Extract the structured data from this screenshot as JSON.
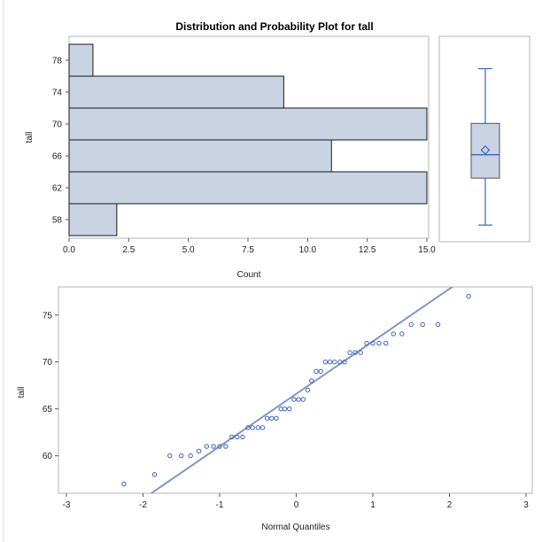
{
  "title": "Distribution and Probability Plot for tall",
  "chart_data": [
    {
      "type": "bar",
      "orientation": "horizontal",
      "title": "Distribution and Probability Plot for tall",
      "xlabel": "Count",
      "ylabel": "tall",
      "categories": [
        "78",
        "74",
        "70",
        "66",
        "62",
        "58"
      ],
      "values": [
        1,
        9,
        15,
        11,
        15,
        2
      ],
      "xlim": [
        0,
        15
      ],
      "x_ticks": [
        "0.0",
        "2.5",
        "5.0",
        "7.5",
        "10.0",
        "12.5",
        "15.0"
      ],
      "y_ticks": [
        "78",
        "74",
        "70",
        "66",
        "62",
        "58"
      ],
      "colors": {
        "fill": "#c9d3e3",
        "stroke": "#1a1a1a"
      }
    },
    {
      "type": "box",
      "whisker_low": 57,
      "q1": 63,
      "median": 66,
      "mean": 66.6,
      "q3": 70,
      "whisker_high": 77,
      "ylim": [
        56,
        80
      ],
      "colors": {
        "box": "#c9d3e3",
        "line": "#3d63c2"
      }
    },
    {
      "type": "scatter",
      "xlabel": "Normal Quantiles",
      "ylabel": "tall",
      "xlim": [
        -3,
        3
      ],
      "ylim": [
        56,
        78
      ],
      "x_ticks": [
        "-3",
        "-2",
        "-1",
        "0",
        "1",
        "2",
        "3"
      ],
      "y_ticks": [
        "75",
        "70",
        "65",
        "60"
      ],
      "points": [
        [
          -2.25,
          57
        ],
        [
          -1.85,
          58
        ],
        [
          -1.65,
          60
        ],
        [
          -1.5,
          60
        ],
        [
          -1.38,
          60
        ],
        [
          -1.27,
          60.5
        ],
        [
          -1.17,
          61
        ],
        [
          -1.08,
          61
        ],
        [
          -1.0,
          61
        ],
        [
          -0.92,
          61
        ],
        [
          -0.84,
          62
        ],
        [
          -0.77,
          62
        ],
        [
          -0.7,
          62
        ],
        [
          -0.63,
          63
        ],
        [
          -0.57,
          63
        ],
        [
          -0.5,
          63
        ],
        [
          -0.44,
          63
        ],
        [
          -0.38,
          64
        ],
        [
          -0.32,
          64
        ],
        [
          -0.26,
          64
        ],
        [
          -0.2,
          65
        ],
        [
          -0.15,
          65
        ],
        [
          -0.09,
          65
        ],
        [
          -0.03,
          66
        ],
        [
          0.03,
          66
        ],
        [
          0.09,
          66
        ],
        [
          0.15,
          67
        ],
        [
          0.2,
          68
        ],
        [
          0.26,
          69
        ],
        [
          0.32,
          69
        ],
        [
          0.38,
          70
        ],
        [
          0.44,
          70
        ],
        [
          0.5,
          70
        ],
        [
          0.57,
          70
        ],
        [
          0.63,
          70
        ],
        [
          0.7,
          71
        ],
        [
          0.77,
          71
        ],
        [
          0.84,
          71
        ],
        [
          0.92,
          72
        ],
        [
          1.0,
          72
        ],
        [
          1.08,
          72
        ],
        [
          1.17,
          72
        ],
        [
          1.27,
          73
        ],
        [
          1.38,
          73
        ],
        [
          1.5,
          74
        ],
        [
          1.65,
          74
        ],
        [
          1.85,
          74
        ],
        [
          2.25,
          77
        ]
      ],
      "ref_line": {
        "intercept": 66.6,
        "slope": 5.6
      },
      "colors": {
        "marker": "#3d63c2",
        "line": "#7e97c6"
      }
    }
  ]
}
